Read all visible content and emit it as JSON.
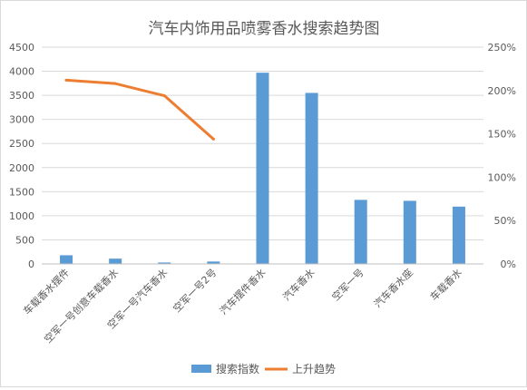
{
  "chart_data": {
    "type": "bar",
    "title": "汽车内饰用品喷雾香水搜索趋势图",
    "categories": [
      "车载香水摆件",
      "空军一号创意车载香水",
      "空军一号汽车香水",
      "空军一号2号",
      "汽车摆件香水",
      "汽车香水",
      "空军一号",
      "汽车香水座",
      "车载香水"
    ],
    "series": [
      {
        "name": "搜索指数",
        "kind": "bar",
        "axis": "left",
        "color": "#5b9bd5",
        "values": [
          180,
          110,
          30,
          50,
          3970,
          3550,
          1330,
          1310,
          1190
        ]
      },
      {
        "name": "上升趋势",
        "kind": "line",
        "axis": "right",
        "color": "#ed7d31",
        "values": [
          2.12,
          2.08,
          1.94,
          1.44,
          null,
          null,
          null,
          null,
          null
        ]
      }
    ],
    "y_left": {
      "ticks": [
        "0",
        "500",
        "1000",
        "1500",
        "2000",
        "2500",
        "3000",
        "3500",
        "4000",
        "4500"
      ],
      "min": 0,
      "max": 4500
    },
    "y_right": {
      "ticks": [
        "0%",
        "50%",
        "100%",
        "150%",
        "200%",
        "250%"
      ],
      "min": 0,
      "max": 2.5
    },
    "grid": true,
    "legend_position": "bottom"
  }
}
